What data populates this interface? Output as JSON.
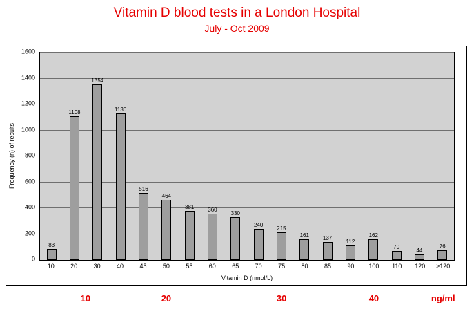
{
  "chart_data": {
    "type": "bar",
    "title": "Vitamin D blood tests in a London Hospital",
    "subtitle": "July - Oct 2009",
    "categories": [
      "10",
      "20",
      "30",
      "40",
      "45",
      "50",
      "55",
      "60",
      "65",
      "70",
      "75",
      "80",
      "85",
      "90",
      "100",
      "110",
      "120",
      ">120"
    ],
    "values": [
      83,
      1108,
      1354,
      1130,
      516,
      464,
      381,
      360,
      330,
      240,
      215,
      161,
      137,
      112,
      162,
      70,
      44,
      76
    ],
    "xlabel": "Vitamin D (nmol/L)",
    "ylabel": "Frequency (n) of results",
    "ylim": [
      0,
      1600
    ],
    "ytick_step": 200,
    "grid": true,
    "legend": "none",
    "secondary_axis": {
      "unit_label": "ng/ml",
      "labels": [
        {
          "text": "10",
          "anchor_index": 1.5
        },
        {
          "text": "20",
          "anchor_index": 5
        },
        {
          "text": "30",
          "anchor_index": 10
        },
        {
          "text": "40",
          "anchor_index": 14
        },
        {
          "text": "ng/ml",
          "anchor_index": 17
        }
      ]
    }
  },
  "colors": {
    "accent_red": "#e60000",
    "bar_fill": "#9e9e9e",
    "plot_background": "#d2d2d2",
    "gridline": "#6f6f6f"
  }
}
